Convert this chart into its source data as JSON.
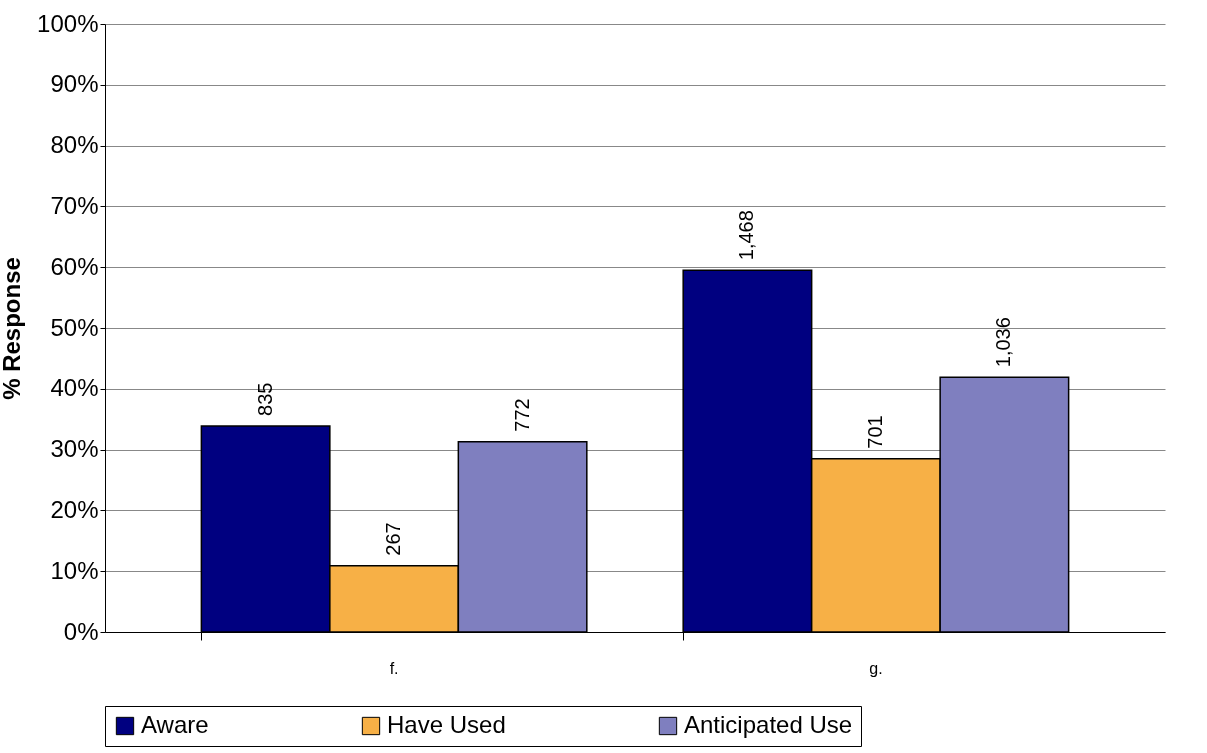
{
  "chart_data": {
    "type": "bar",
    "ylabel": "% Response",
    "categories": [
      "f.",
      "g."
    ],
    "series": [
      {
        "name": "Aware",
        "color": "#000080",
        "values": [
          33.9,
          59.5
        ]
      },
      {
        "name": "Have Used",
        "color": "#f7b046",
        "values": [
          10.9,
          28.5
        ]
      },
      {
        "name": "Anticipated Use",
        "color": "#7f7fbf",
        "values": [
          31.3,
          41.9
        ]
      }
    ],
    "annotations": [
      "835",
      "267",
      "772",
      "1,468",
      "701",
      "1,036"
    ],
    "ylim": [
      0,
      100
    ],
    "yticks": [
      {
        "value": 0,
        "label": "0%"
      },
      {
        "value": 10,
        "label": "10%"
      },
      {
        "value": 20,
        "label": "20%"
      },
      {
        "value": 30,
        "label": "30%"
      },
      {
        "value": 40,
        "label": "40%"
      },
      {
        "value": 50,
        "label": "50%"
      },
      {
        "value": 60,
        "label": "60%"
      },
      {
        "value": 70,
        "label": "70%"
      },
      {
        "value": 80,
        "label": "80%"
      },
      {
        "value": 90,
        "label": "90%"
      },
      {
        "value": 100,
        "label": "100%"
      }
    ],
    "grid": "y",
    "legend": "bottom"
  }
}
